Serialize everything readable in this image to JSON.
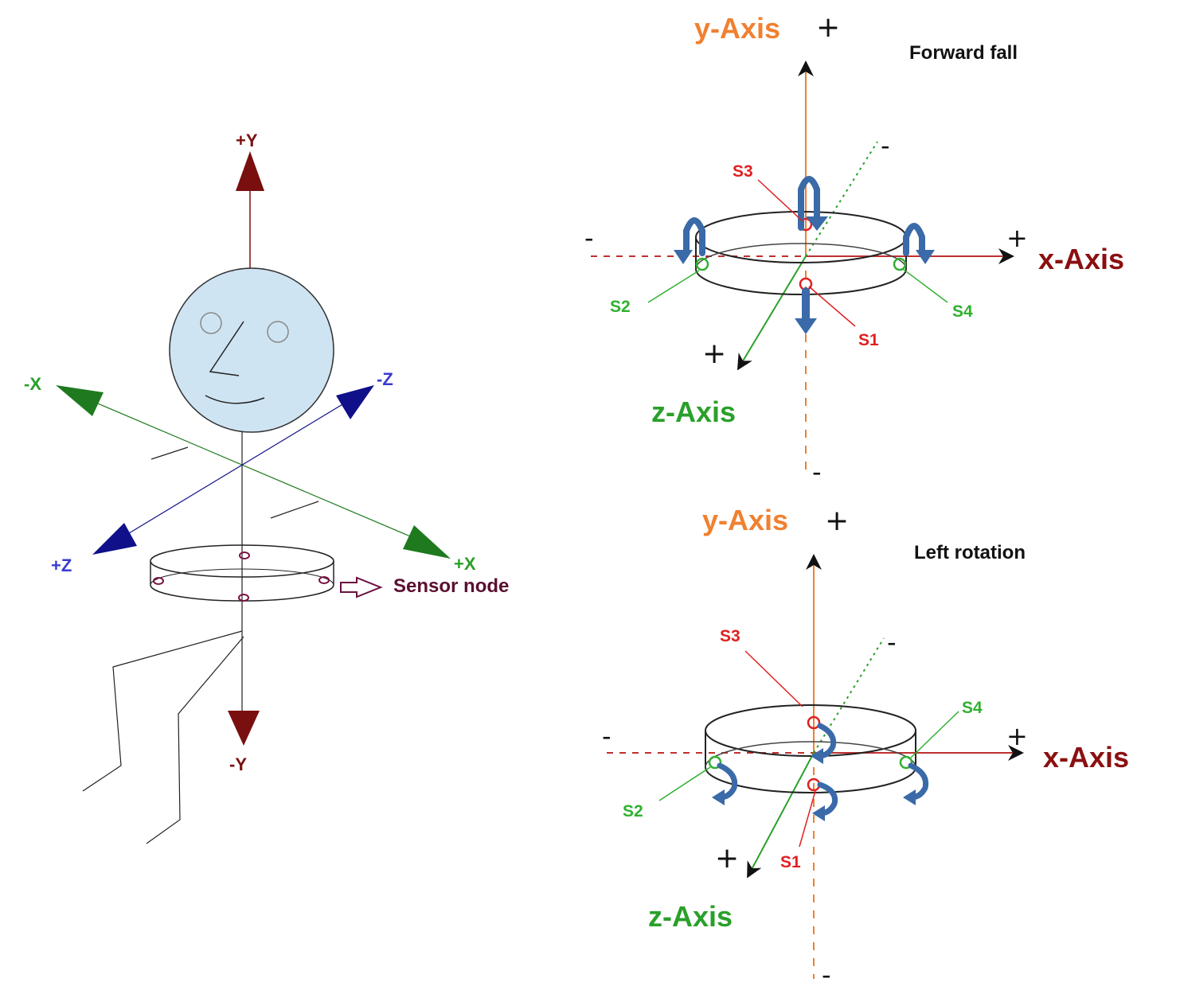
{
  "left_panel": {
    "labels": {
      "pos_y": "+Y",
      "neg_y": "-Y",
      "neg_x": "-X",
      "pos_x": "+X",
      "neg_z": "-Z",
      "pos_z": "+Z",
      "sensor_node": "Sensor node"
    }
  },
  "top_panel": {
    "title": "Forward fall",
    "y_axis": "y-Axis",
    "x_axis": "x-Axis",
    "z_axis": "z-Axis",
    "signs": {
      "y_plus": "+",
      "y_minus": "-",
      "x_plus": "+",
      "x_minus": "-",
      "z_plus": "+",
      "z_minus": "-"
    },
    "sensors": {
      "s1": "S1",
      "s2": "S2",
      "s3": "S3",
      "s4": "S4"
    }
  },
  "bottom_panel": {
    "title": "Left rotation",
    "y_axis": "y-Axis",
    "x_axis": "x-Axis",
    "z_axis": "z-Axis",
    "signs": {
      "y_plus": "+",
      "y_minus": "-",
      "x_plus": "+",
      "x_minus": "-",
      "z_plus": "+",
      "z_minus": "-"
    },
    "sensors": {
      "s1": "S1",
      "s2": "S2",
      "s3": "S3",
      "s4": "S4"
    }
  },
  "colors": {
    "y_axis_label": "#f08030",
    "x_axis_label": "#8b1010",
    "z_axis_label": "#2aa02a",
    "sensor_red": "#e02020",
    "sensor_green": "#30b030",
    "arrow_blue": "#3a6aa8",
    "stick_y": "#7a0f0f",
    "stick_x": "#1f7a1f",
    "stick_z": "#10108a",
    "head_fill": "#cfe4f3"
  }
}
